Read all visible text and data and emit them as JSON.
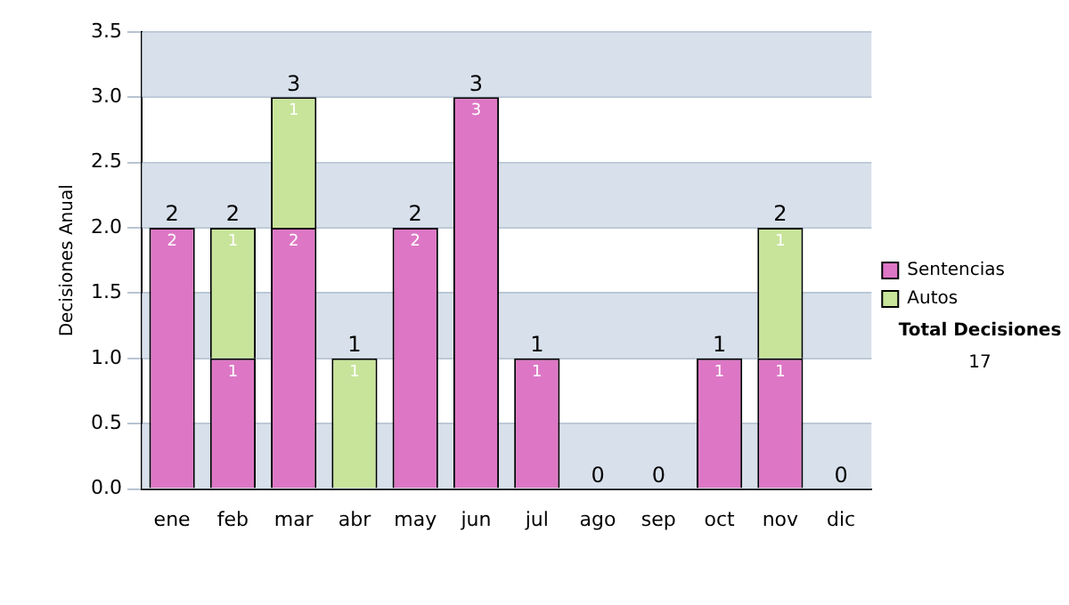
{
  "chart_data": {
    "type": "bar",
    "stacked": true,
    "ylabel": "Decisiones Anual",
    "categories": [
      "ene",
      "feb",
      "mar",
      "abr",
      "may",
      "jun",
      "jul",
      "ago",
      "sep",
      "oct",
      "nov",
      "dic"
    ],
    "series": [
      {
        "name": "Sentencias",
        "color": "#dd77c5",
        "values": [
          2,
          1,
          2,
          0,
          2,
          3,
          1,
          0,
          0,
          1,
          1,
          0
        ],
        "value_labels": [
          "2",
          "1",
          "2",
          null,
          "2",
          "3",
          "1",
          null,
          null,
          "1",
          "1",
          null
        ]
      },
      {
        "name": "Autos",
        "color": "#c8e49a",
        "values": [
          0,
          1,
          1,
          1,
          0,
          0,
          0,
          0,
          0,
          0,
          1,
          0
        ],
        "value_labels": [
          null,
          "1",
          "1",
          "1",
          null,
          null,
          null,
          null,
          null,
          null,
          "1",
          null
        ]
      }
    ],
    "totals": [
      "2",
      "2",
      "3",
      "1",
      "2",
      "3",
      "1",
      "0",
      "0",
      "1",
      "2",
      "0"
    ],
    "ylim": [
      0,
      3.5
    ],
    "yticks": [
      {
        "value": 0,
        "label": "0.0"
      },
      {
        "value": 0.5,
        "label": "0.5"
      },
      {
        "value": 1,
        "label": "1.0"
      },
      {
        "value": 1.5,
        "label": "1.5"
      },
      {
        "value": 2,
        "label": "2.0"
      },
      {
        "value": 2.5,
        "label": "2.5"
      },
      {
        "value": 3,
        "label": "3.0"
      },
      {
        "value": 3.5,
        "label": "3.5"
      }
    ],
    "grid": "y",
    "legend": "right",
    "annotations": [
      "Total Decisiones",
      "17"
    ]
  }
}
